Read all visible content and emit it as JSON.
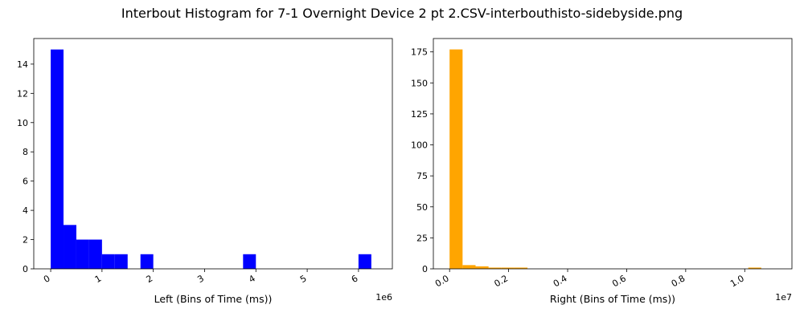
{
  "figure": {
    "title": "Interbout Histogram for 7-1 Overnight Device 2 pt 2.CSV-interbouthisto-sidebyside.png"
  },
  "chart_data": [
    {
      "type": "bar",
      "subtype": "histogram",
      "xlabel": "Left (Bins of Time (ms))",
      "ylabel": "",
      "offset_text": "1e6",
      "bar_color": "#0000ff",
      "xlim": [
        -0.33,
        6.66
      ],
      "ylim": [
        0,
        15.75
      ],
      "x_ticks": [
        0,
        1,
        2,
        3,
        4,
        5,
        6
      ],
      "x_tick_labels": [
        "0",
        "1",
        "2",
        "3",
        "4",
        "5",
        "6"
      ],
      "y_ticks": [
        0,
        2,
        4,
        6,
        8,
        10,
        12,
        14
      ],
      "y_tick_labels": [
        "0",
        "2",
        "4",
        "6",
        "8",
        "10",
        "12",
        "14"
      ],
      "bin_edges": [
        0,
        0.25,
        0.5,
        0.75,
        1.0,
        1.25,
        1.5,
        1.75,
        2.0,
        2.25,
        2.5,
        2.75,
        3.0,
        3.25,
        3.5,
        3.75,
        4.0,
        4.25,
        4.5,
        4.75,
        5.0,
        5.25,
        5.5,
        5.75,
        6.0,
        6.25
      ],
      "values": [
        15,
        3,
        2,
        2,
        1,
        1,
        0,
        1,
        0,
        0,
        0,
        0,
        0,
        0,
        0,
        1,
        0,
        0,
        0,
        0,
        0,
        0,
        0,
        0,
        1
      ],
      "grid": false,
      "legend": "none"
    },
    {
      "type": "bar",
      "subtype": "histogram",
      "xlabel": "Right (Bins of Time (ms))",
      "ylabel": "",
      "offset_text": "1e7",
      "bar_color": "#ffa500",
      "xlim": [
        -0.055,
        1.16
      ],
      "ylim": [
        0,
        185.8
      ],
      "x_ticks": [
        0.0,
        0.2,
        0.4,
        0.6,
        0.8,
        1.0
      ],
      "x_tick_labels": [
        "0.0",
        "0.2",
        "0.4",
        "0.6",
        "0.8",
        "1.0"
      ],
      "y_ticks": [
        0,
        25,
        50,
        75,
        100,
        125,
        150,
        175
      ],
      "y_tick_labels": [
        "0",
        "25",
        "50",
        "75",
        "100",
        "125",
        "150",
        "175"
      ],
      "bin_edges": [
        0,
        0.044,
        0.088,
        0.132,
        0.176,
        0.22,
        0.264,
        0.308,
        0.352,
        0.396,
        0.44,
        0.484,
        0.528,
        0.572,
        0.616,
        0.66,
        0.704,
        0.748,
        0.792,
        0.836,
        0.88,
        0.924,
        0.968,
        1.012,
        1.056
      ],
      "values": [
        177,
        3,
        2,
        1,
        1,
        1,
        0,
        0,
        0,
        0,
        0,
        0,
        0,
        0,
        0,
        0,
        0,
        0,
        0,
        0,
        0,
        0,
        0,
        1
      ],
      "grid": false,
      "legend": "none"
    }
  ]
}
